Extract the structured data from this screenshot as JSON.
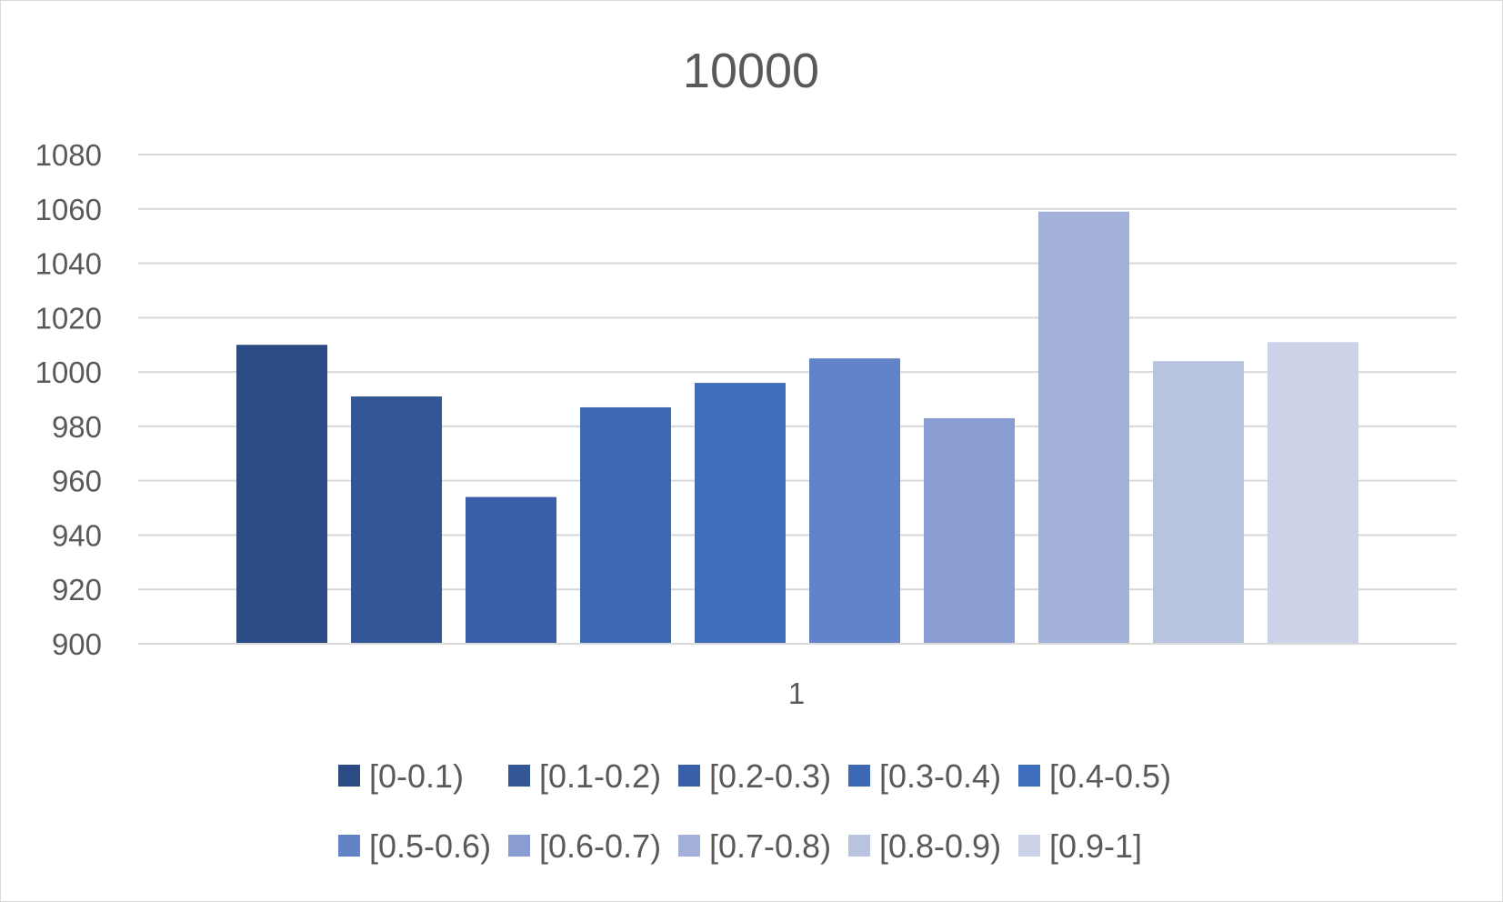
{
  "chart_data": {
    "type": "bar",
    "title": "10000",
    "categories": [
      "1"
    ],
    "series": [
      {
        "name": "[0-0.1)",
        "values": [
          1010
        ],
        "color": "#2c4b85"
      },
      {
        "name": "[0.1-0.2)",
        "values": [
          991
        ],
        "color": "#335796"
      },
      {
        "name": "[0.2-0.3)",
        "values": [
          954
        ],
        "color": "#3a5fa9"
      },
      {
        "name": "[0.3-0.4)",
        "values": [
          987
        ],
        "color": "#3e67b4"
      },
      {
        "name": "[0.4-0.5)",
        "values": [
          996
        ],
        "color": "#406ebe"
      },
      {
        "name": "[0.5-0.6)",
        "values": [
          1005
        ],
        "color": "#6283c8"
      },
      {
        "name": "[0.6-0.7)",
        "values": [
          983
        ],
        "color": "#899dd3"
      },
      {
        "name": "[0.7-0.8)",
        "values": [
          1059
        ],
        "color": "#a3b1da"
      },
      {
        "name": "[0.8-0.9)",
        "values": [
          1004
        ],
        "color": "#b8c3e0"
      },
      {
        "name": "[0.9-1]",
        "values": [
          1011
        ],
        "color": "#ccd3e8"
      }
    ],
    "y_ticks": [
      "900",
      "920",
      "940",
      "960",
      "980",
      "1000",
      "1020",
      "1040",
      "1060",
      "1080"
    ],
    "ylim": [
      900,
      1080
    ],
    "grid": true,
    "legend_position": "bottom"
  }
}
